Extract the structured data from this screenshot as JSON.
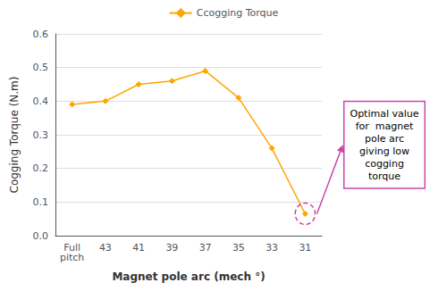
{
  "chart_data": {
    "type": "line",
    "categories": [
      "Full\npitch",
      "43",
      "41",
      "39",
      "37",
      "35",
      "33",
      "31"
    ],
    "series": [
      {
        "name": "Ccogging Torque",
        "color": "#FFA500",
        "marker": "diamond",
        "values": [
          0.39,
          0.4,
          0.45,
          0.46,
          0.49,
          0.41,
          0.26,
          0.065
        ]
      }
    ],
    "xlabel": "Magnet pole arc (mech °)",
    "ylabel": "Cogging Torque (N.m)",
    "ylim": [
      0,
      0.6
    ],
    "yticks": [
      {
        "value": 0,
        "label": "0.0"
      },
      0.1,
      0.2,
      0.3,
      0.4,
      0.5,
      0.6
    ],
    "grid": true,
    "legend": "top",
    "annotations": [
      {
        "text": "Optimal value\nfor  magnet\npole arc\ngiving low\ncogging\ntorque",
        "x": "31",
        "color": "#CC44AA"
      }
    ]
  }
}
